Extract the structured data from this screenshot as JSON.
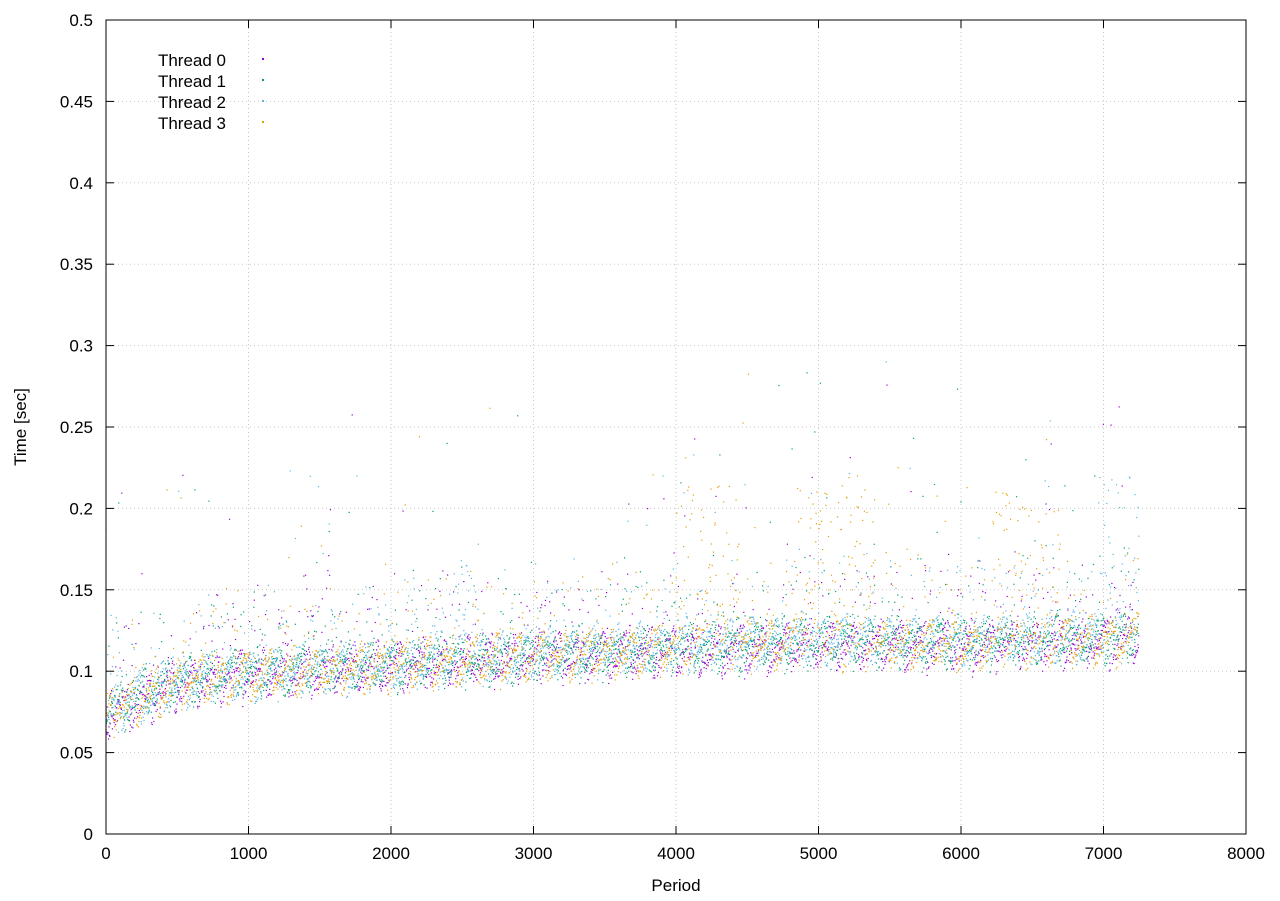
{
  "chart_data": {
    "type": "scatter",
    "xlabel": "Period",
    "ylabel": "Time [sec]",
    "xlim": [
      0,
      8000
    ],
    "ylim": [
      0,
      0.5
    ],
    "grid": true,
    "legend_position": "top-left",
    "x_ticks": [
      "0",
      "1000",
      "2000",
      "3000",
      "4000",
      "5000",
      "6000",
      "7000",
      "8000"
    ],
    "y_ticks": [
      "0",
      "0.05",
      "0.1",
      "0.15",
      "0.2",
      "0.25",
      "0.3",
      "0.35",
      "0.4",
      "0.45",
      "0.5"
    ],
    "points_per_series": 7250,
    "series": [
      {
        "name": "Thread 0",
        "color": "#9400d3",
        "trend": [
          [
            0,
            0.072
          ],
          [
            500,
            0.092
          ],
          [
            1000,
            0.097
          ],
          [
            2000,
            0.103
          ],
          [
            3000,
            0.108
          ],
          [
            4000,
            0.112
          ],
          [
            5000,
            0.116
          ],
          [
            6000,
            0.115
          ],
          [
            7000,
            0.118
          ],
          [
            7250,
            0.12
          ]
        ],
        "peak_regions": []
      },
      {
        "name": "Thread 1",
        "color": "#009e73",
        "trend": [
          [
            0,
            0.075
          ],
          [
            500,
            0.094
          ],
          [
            1000,
            0.099
          ],
          [
            2000,
            0.104
          ],
          [
            3000,
            0.109
          ],
          [
            4000,
            0.114
          ],
          [
            5000,
            0.118
          ],
          [
            6000,
            0.117
          ],
          [
            7000,
            0.12
          ],
          [
            7250,
            0.122
          ]
        ],
        "peak_regions": []
      },
      {
        "name": "Thread 2",
        "color": "#56b4e9",
        "trend": [
          [
            0,
            0.074
          ],
          [
            500,
            0.093
          ],
          [
            1000,
            0.098
          ],
          [
            2000,
            0.104
          ],
          [
            3000,
            0.11
          ],
          [
            4000,
            0.116
          ],
          [
            5000,
            0.12
          ],
          [
            6000,
            0.119
          ],
          [
            7000,
            0.122
          ],
          [
            7250,
            0.124
          ]
        ],
        "peak_regions": [
          [
            2400,
            2600,
            0.17
          ],
          [
            6950,
            7250,
            0.22
          ]
        ]
      },
      {
        "name": "Thread 3",
        "color": "#e69f00",
        "trend": [
          [
            0,
            0.073
          ],
          [
            500,
            0.092
          ],
          [
            1000,
            0.097
          ],
          [
            2000,
            0.103
          ],
          [
            3000,
            0.109
          ],
          [
            4000,
            0.114
          ],
          [
            5000,
            0.118
          ],
          [
            6000,
            0.116
          ],
          [
            7000,
            0.119
          ],
          [
            7250,
            0.121
          ]
        ],
        "peak_regions": [
          [
            4000,
            4450,
            0.22
          ],
          [
            4850,
            5400,
            0.22
          ],
          [
            6200,
            6700,
            0.21
          ]
        ]
      }
    ]
  }
}
